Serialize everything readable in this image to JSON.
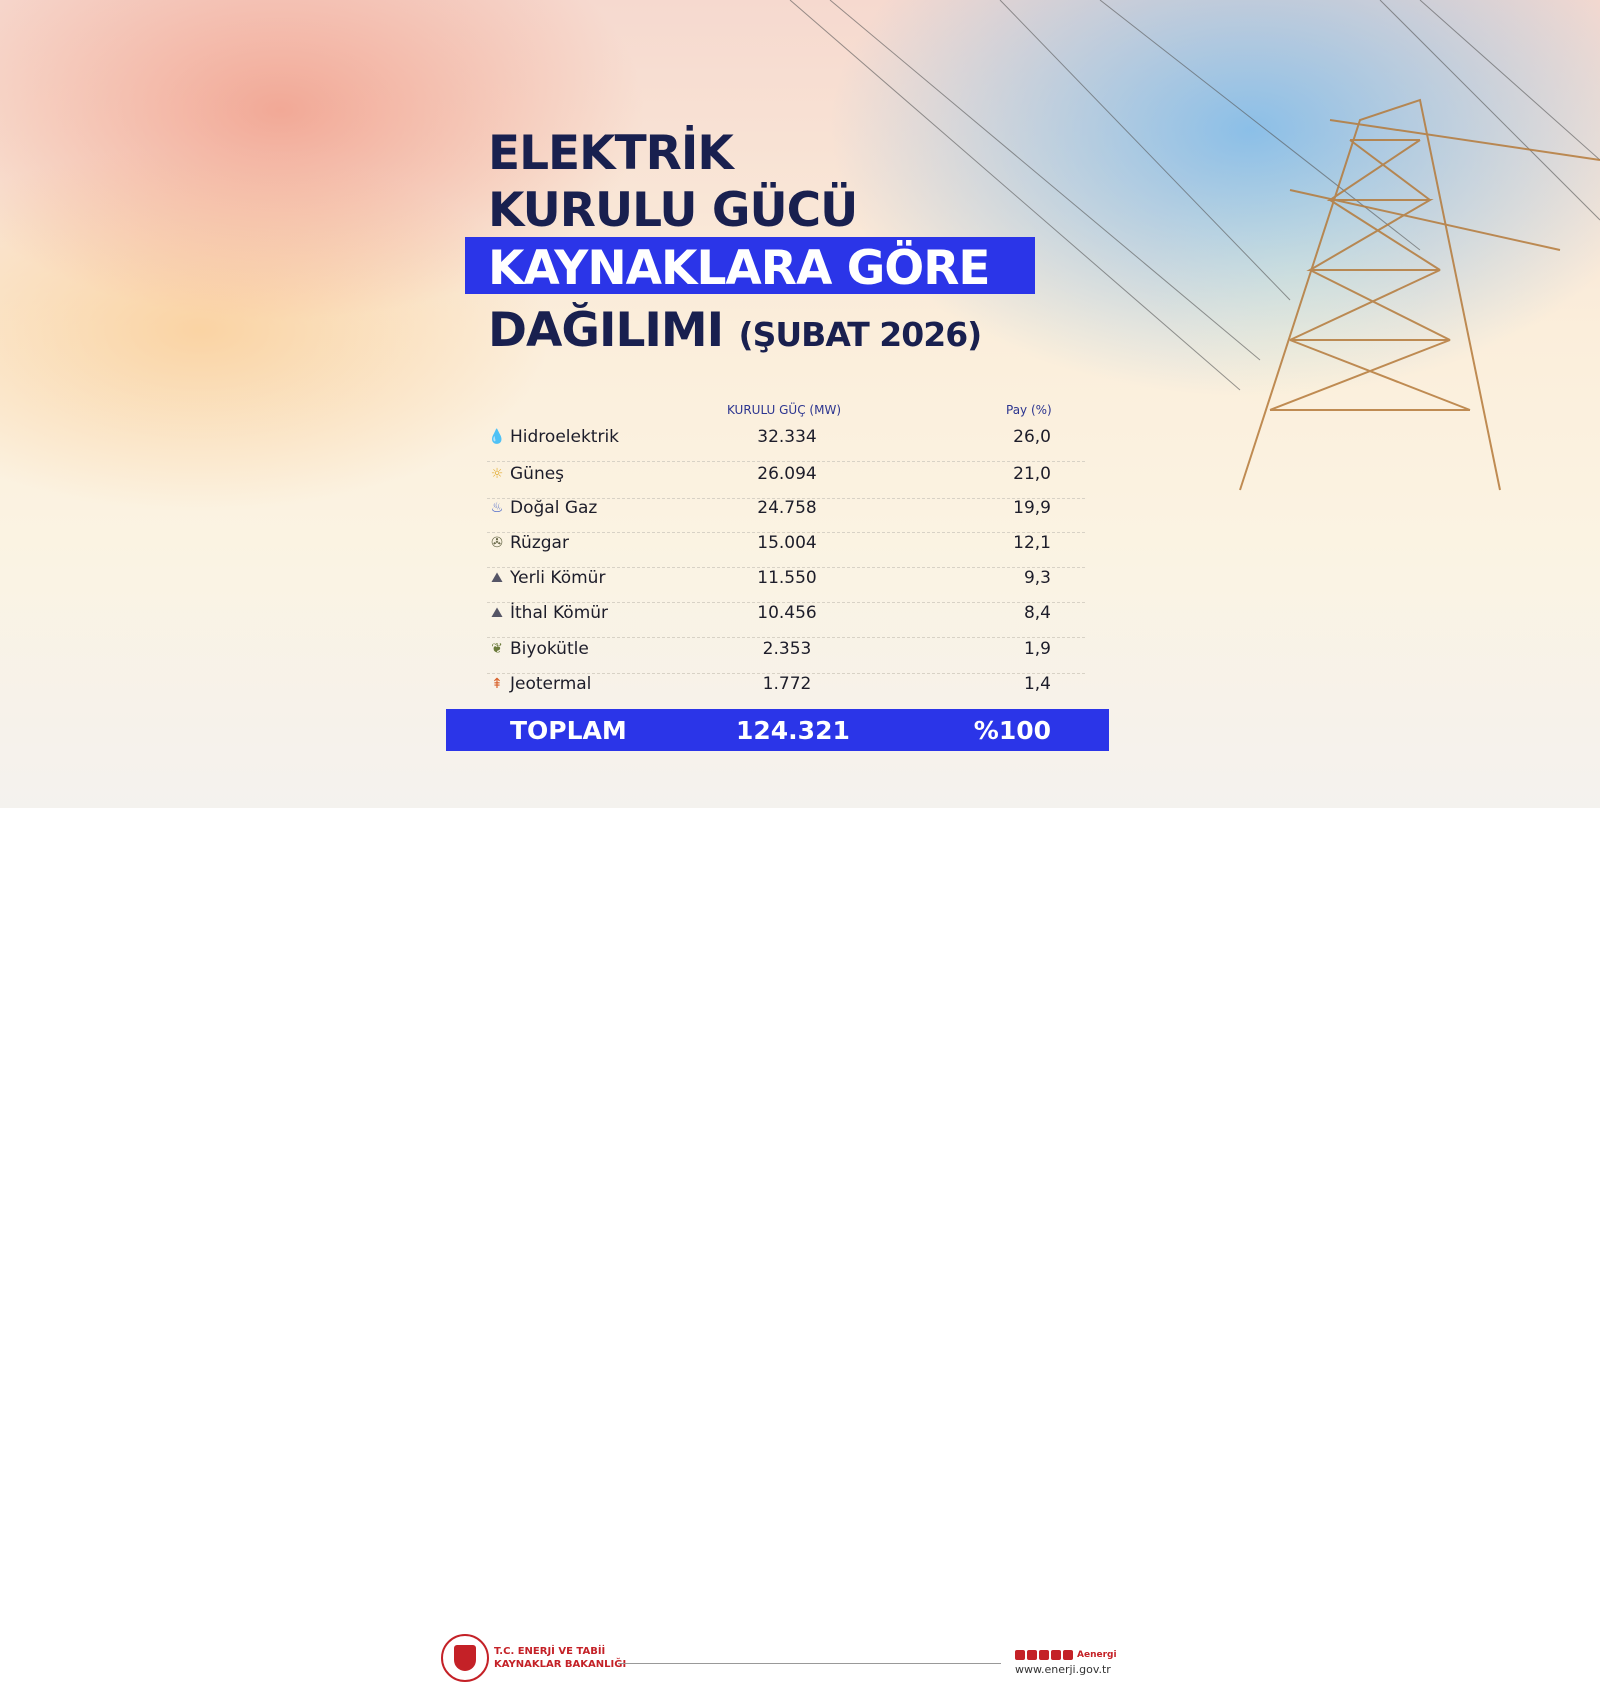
{
  "title": {
    "line1": "ELEKTRİK",
    "line2": "KURULU GÜCÜ",
    "line3": "KAYNAKLARA GÖRE",
    "line4": "DAĞILIMI",
    "period": "(ŞUBAT 2026)"
  },
  "colors": {
    "accent": "#2b35e8",
    "title": "#19204f",
    "brand": "#c42127"
  },
  "table": {
    "headers": {
      "capacity": "KURULU GÜÇ (MW)",
      "share": "Pay (%)"
    },
    "rows": [
      {
        "icon": "water-drop-icon",
        "name": "Hidroelektrik",
        "capacity": "32.334",
        "share": "26,0"
      },
      {
        "icon": "sun-icon",
        "name": "Güneş",
        "capacity": "26.094",
        "share": "21,0"
      },
      {
        "icon": "gas-flame-icon",
        "name": "Doğal Gaz",
        "capacity": "24.758",
        "share": "19,9"
      },
      {
        "icon": "wind-turbine-icon",
        "name": "Rüzgar",
        "capacity": "15.004",
        "share": "12,1"
      },
      {
        "icon": "coal-icon",
        "name": "Yerli Kömür",
        "capacity": "11.550",
        "share": "9,3"
      },
      {
        "icon": "coal-icon",
        "name": "İthal Kömür",
        "capacity": "10.456",
        "share": "8,4"
      },
      {
        "icon": "biomass-icon",
        "name": "Biyokütle",
        "capacity": "2.353",
        "share": "1,9"
      },
      {
        "icon": "geothermal-icon",
        "name": "Jeotermal",
        "capacity": "1.772",
        "share": "1,4"
      }
    ],
    "total": {
      "label": "TOPLAM",
      "capacity": "124.321",
      "share": "%100"
    }
  },
  "footer": {
    "org_line1": "T.C. ENERJİ VE TABİİ",
    "org_line2": "KAYNAKLAR BAKANLIĞI",
    "handle": "Aenergi",
    "url": "www.enerji.gov.tr"
  }
}
